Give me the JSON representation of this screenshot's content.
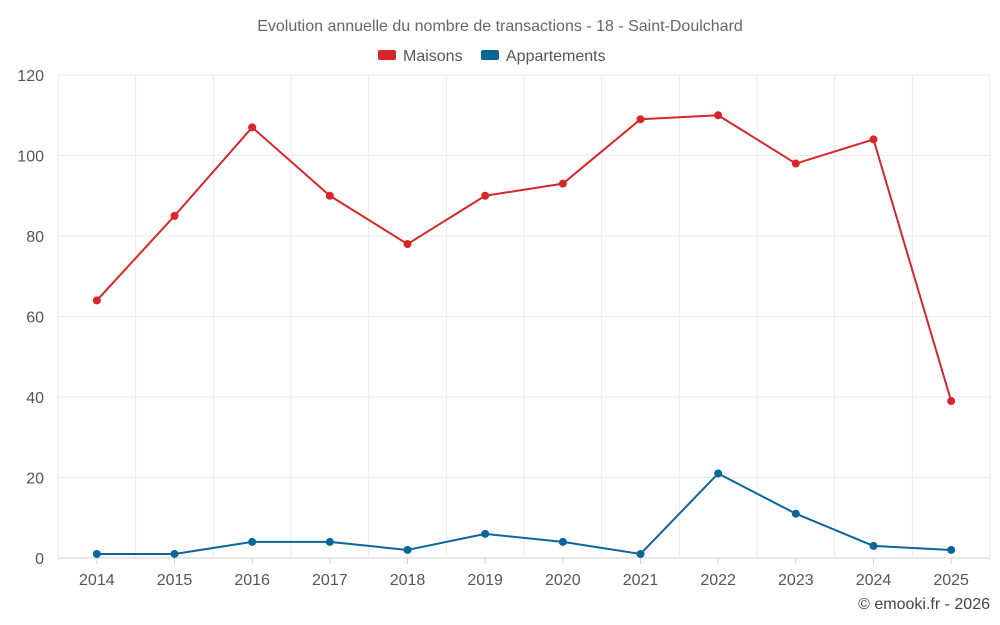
{
  "chart_data": {
    "type": "line",
    "title": "Evolution annuelle du nombre de transactions - 18 - Saint-Doulchard",
    "categories": [
      "2014",
      "2015",
      "2016",
      "2017",
      "2018",
      "2019",
      "2020",
      "2021",
      "2022",
      "2023",
      "2024",
      "2025"
    ],
    "series": [
      {
        "name": "Maisons",
        "color": "#d62728",
        "values": [
          64,
          85,
          107,
          90,
          78,
          90,
          93,
          109,
          110,
          98,
          104,
          39
        ]
      },
      {
        "name": "Appartements",
        "color": "#0a6699",
        "values": [
          1,
          1,
          4,
          4,
          2,
          6,
          4,
          1,
          21,
          11,
          3,
          2
        ]
      }
    ],
    "ylim": [
      0,
      120
    ],
    "yticks": [
      0,
      20,
      40,
      60,
      80,
      100,
      120
    ],
    "xlabel": "",
    "ylabel": "",
    "grid": true,
    "legend": "top-center"
  },
  "credit": "© emooki.fr - 2026"
}
